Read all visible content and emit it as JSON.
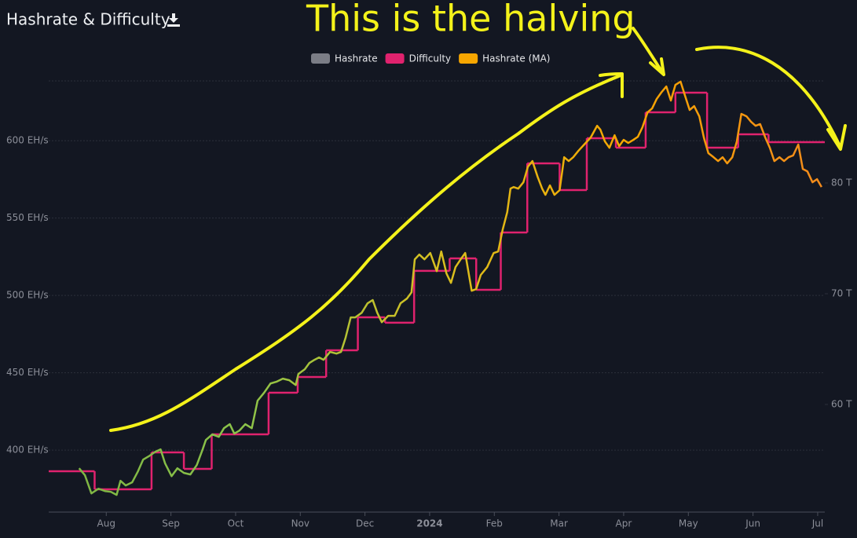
{
  "chart_data": {
    "type": "line",
    "title": "Hashrate & Difficulty",
    "annotation": "This is the halving",
    "grid": true,
    "xlim": [
      0.11,
      12.11
    ],
    "xticks": [
      {
        "value": 1,
        "label": "Aug"
      },
      {
        "value": 2,
        "label": "Sep"
      },
      {
        "value": 3,
        "label": "Oct"
      },
      {
        "value": 4,
        "label": "Nov"
      },
      {
        "value": 5,
        "label": "Dec"
      },
      {
        "value": 6,
        "label": "2024"
      },
      {
        "value": 7,
        "label": "Feb"
      },
      {
        "value": 8,
        "label": "Mar"
      },
      {
        "value": 9,
        "label": "Apr"
      },
      {
        "value": 10,
        "label": "May"
      },
      {
        "value": 11,
        "label": "Jun"
      },
      {
        "value": 12,
        "label": "Jul"
      }
    ],
    "xtick_bold_index": 5,
    "ylim": [
      360,
      638.6
    ],
    "yticks": [
      {
        "value": 400,
        "label": "400 EH/s"
      },
      {
        "value": 450,
        "label": "450 EH/s"
      },
      {
        "value": 500,
        "label": "500 EH/s"
      },
      {
        "value": 550,
        "label": "550 EH/s"
      },
      {
        "value": 600,
        "label": "600 EH/s"
      }
    ],
    "y2lim": [
      50.28,
      89.22
    ],
    "y2ticks": [
      {
        "value": 60,
        "label": "60 T"
      },
      {
        "value": 70,
        "label": "70 T"
      },
      {
        "value": 80,
        "label": "80 T"
      }
    ],
    "series": [
      {
        "name": "Hashrate",
        "color": "#7b7d86",
        "hidden": true
      },
      {
        "name": "Difficulty",
        "color": "#e0226e",
        "axis": "y2",
        "step": true,
        "x": [
          0.11,
          0.82,
          1.7,
          2.2,
          2.63,
          3.51,
          3.96,
          4.4,
          4.89,
          5.31,
          5.76,
          6.31,
          6.72,
          7.1,
          7.51,
          8.01,
          8.43,
          8.88,
          9.34,
          9.8,
          10.29,
          10.77,
          11.24
        ],
        "values": [
          53.97,
          52.34,
          55.67,
          54.18,
          57.3,
          61.06,
          62.48,
          64.89,
          67.87,
          67.38,
          72.06,
          73.19,
          70.35,
          75.53,
          81.77,
          79.36,
          84.04,
          83.19,
          86.38,
          88.16,
          83.19,
          84.4,
          83.69
        ]
      },
      {
        "name": "Hashrate (MA)",
        "color": "#f7a600",
        "line_gradient": [
          "#7cb342",
          "#8bc34a",
          "#d8c020",
          "#f7a600",
          "#f28a1c"
        ],
        "x": [
          0.58,
          0.67,
          0.77,
          0.88,
          0.98,
          1.07,
          1.16,
          1.22,
          1.3,
          1.4,
          1.49,
          1.57,
          1.67,
          1.76,
          1.84,
          1.91,
          2.01,
          2.1,
          2.2,
          2.3,
          2.4,
          2.49,
          2.54,
          2.64,
          2.74,
          2.82,
          2.91,
          2.98,
          3.06,
          3.15,
          3.25,
          3.34,
          3.44,
          3.54,
          3.63,
          3.73,
          3.83,
          3.93,
          3.97,
          4.07,
          4.14,
          4.22,
          4.29,
          4.36,
          4.46,
          4.56,
          4.63,
          4.7,
          4.78,
          4.85,
          4.95,
          5.04,
          5.12,
          5.19,
          5.26,
          5.36,
          5.46,
          5.55,
          5.65,
          5.72,
          5.77,
          5.84,
          5.92,
          6.01,
          6.11,
          6.18,
          6.26,
          6.33,
          6.4,
          6.48,
          6.55,
          6.65,
          6.72,
          6.79,
          6.89,
          6.99,
          7.06,
          7.13,
          7.2,
          7.25,
          7.3,
          7.37,
          7.45,
          7.52,
          7.59,
          7.67,
          7.74,
          7.79,
          7.86,
          7.93,
          8.01,
          8.08,
          8.15,
          8.22,
          8.3,
          8.39,
          8.49,
          8.59,
          8.64,
          8.71,
          8.78,
          8.86,
          8.93,
          9.0,
          9.07,
          9.15,
          9.22,
          9.29,
          9.37,
          9.44,
          9.51,
          9.58,
          9.66,
          9.73,
          9.8,
          9.88,
          9.95,
          10.02,
          10.09,
          10.17,
          10.24,
          10.31,
          10.39,
          10.46,
          10.53,
          10.6,
          10.68,
          10.75,
          10.82,
          10.9,
          10.97,
          11.04,
          11.11,
          11.19,
          11.26,
          11.33,
          11.41,
          11.48,
          11.55,
          11.62,
          11.7,
          11.77,
          11.84,
          11.92,
          11.99,
          12.06
        ],
        "values": [
          388.3,
          383.8,
          372.1,
          375.1,
          373.6,
          373.1,
          371.1,
          380.2,
          377.2,
          379.2,
          386.3,
          393.9,
          396.4,
          399.0,
          400.5,
          391.4,
          383.2,
          388.3,
          385.3,
          384.3,
          390.4,
          400.5,
          406.6,
          410.2,
          408.6,
          414.2,
          416.8,
          410.7,
          412.7,
          416.8,
          414.2,
          432.0,
          437.1,
          443.1,
          444.2,
          446.2,
          445.2,
          442.1,
          449.2,
          452.3,
          456.3,
          458.4,
          459.9,
          458.4,
          463.5,
          462.4,
          463.5,
          472.6,
          485.8,
          485.8,
          488.8,
          494.9,
          497.0,
          488.8,
          482.7,
          486.8,
          486.8,
          494.9,
          498.0,
          502.0,
          523.3,
          526.4,
          523.3,
          527.4,
          515.7,
          528.4,
          514.2,
          508.1,
          518.3,
          523.3,
          527.4,
          503.0,
          504.1,
          513.2,
          518.3,
          527.4,
          528.4,
          542.6,
          553.8,
          569.0,
          570.0,
          569.0,
          573.1,
          583.2,
          586.8,
          576.6,
          569.0,
          565.0,
          571.1,
          565.0,
          568.0,
          589.3,
          586.8,
          589.3,
          593.4,
          597.5,
          602.0,
          609.6,
          607.1,
          599.5,
          595.4,
          603.5,
          596.4,
          600.5,
          598.5,
          600.5,
          602.5,
          608.6,
          618.3,
          620.8,
          626.9,
          631.0,
          635.0,
          625.9,
          636.0,
          638.1,
          628.9,
          619.8,
          622.3,
          615.7,
          602.0,
          591.9,
          589.3,
          586.8,
          589.3,
          585.3,
          589.3,
          599.5,
          617.3,
          615.7,
          612.2,
          609.6,
          610.7,
          602.0,
          595.4,
          586.8,
          589.3,
          586.8,
          589.3,
          590.4,
          597.5,
          581.7,
          580.2,
          573.1,
          575.1,
          570.0
        ]
      }
    ]
  }
}
